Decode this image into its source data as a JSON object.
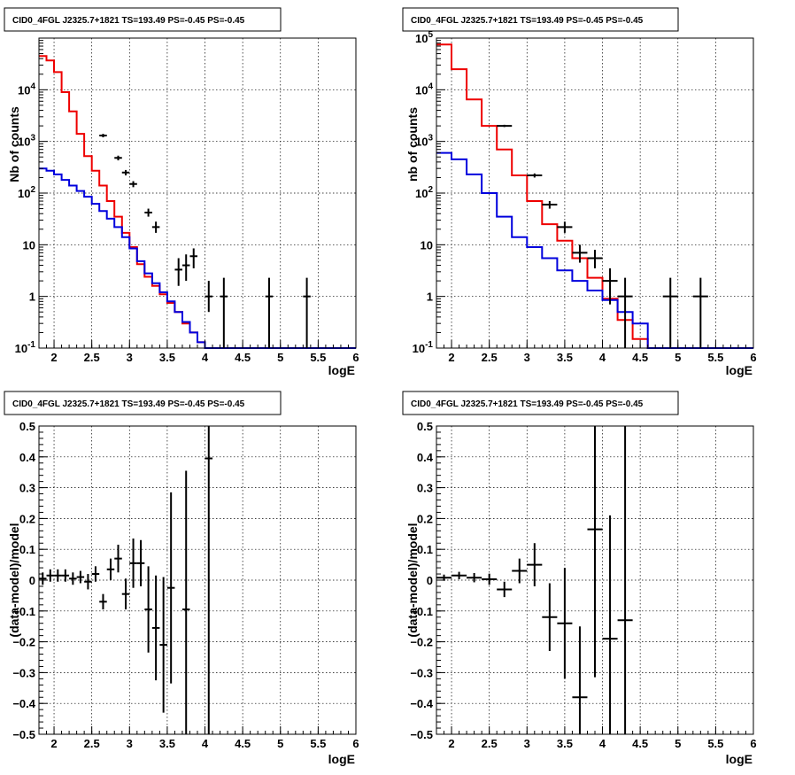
{
  "chart_data": [
    {
      "type": "step-histogram-log",
      "title": "CID0_4FGL J2325.7+1821 TS=193.49 PS=-0.45 PS=-0.45",
      "xlabel": "logE",
      "ylabel": "Nb of counts",
      "xlim": [
        1.8,
        6.0
      ],
      "ylim": [
        0.1,
        100000
      ],
      "log_y": true,
      "grid": true,
      "x_ticks": [
        "2",
        "2.5",
        "3",
        "3.5",
        "4",
        "4.5",
        "5",
        "5.5",
        "6"
      ],
      "y_ticks": [
        "10^-1",
        "1",
        "10",
        "10^2",
        "10^3",
        "10^4"
      ],
      "bin_edges_start": 1.8,
      "bin_width": 0.1,
      "series": [
        {
          "color": "#ee0000",
          "values": [
            45000,
            37000,
            22000,
            9000,
            3800,
            1400,
            520,
            270,
            140,
            70,
            35,
            17,
            9,
            4.2,
            2.4,
            1.6,
            1.1,
            0.75,
            0.5,
            0.3,
            0.2,
            0.13,
            0.1,
            0.1,
            0.1,
            0.1,
            0.1,
            0.1,
            0.1,
            0.1,
            0.1,
            0.1,
            0.1,
            0.1,
            0.1,
            0.1,
            0.1,
            0.1,
            0.1,
            0.1,
            0.1,
            0.1
          ]
        },
        {
          "color": "#0000dd",
          "values": [
            300,
            270,
            230,
            180,
            140,
            110,
            85,
            62,
            45,
            32,
            22,
            14,
            8.5,
            4.8,
            2.8,
            1.8,
            1.2,
            0.8,
            0.5,
            0.32,
            0.2,
            0.13,
            0.1,
            0.1,
            0.1,
            0.1,
            0.1,
            0.1,
            0.1,
            0.1,
            0.1,
            0.1,
            0.1,
            0.1,
            0.1,
            0.1,
            0.1,
            0.1,
            0.1,
            0.1,
            0.1,
            0.1
          ]
        }
      ],
      "points": [
        {
          "x": 2.65,
          "y": 1300,
          "ylo": 1200,
          "yhi": 1400
        },
        {
          "x": 2.85,
          "y": 480,
          "ylo": 430,
          "yhi": 530
        },
        {
          "x": 2.95,
          "y": 250,
          "ylo": 220,
          "yhi": 280
        },
        {
          "x": 3.05,
          "y": 150,
          "ylo": 130,
          "yhi": 170
        },
        {
          "x": 3.25,
          "y": 42,
          "ylo": 35,
          "yhi": 50
        },
        {
          "x": 3.35,
          "y": 22,
          "ylo": 17,
          "yhi": 28
        },
        {
          "x": 3.65,
          "y": 3.3,
          "ylo": 1.6,
          "yhi": 5.5
        },
        {
          "x": 3.75,
          "y": 4.0,
          "ylo": 2.0,
          "yhi": 6.5
        },
        {
          "x": 3.85,
          "y": 6.0,
          "ylo": 3.5,
          "yhi": 8.5
        },
        {
          "x": 4.05,
          "y": 1.0,
          "ylo": 0.5,
          "yhi": 2.0
        },
        {
          "x": 4.25,
          "y": 1.0,
          "ylo": 0.1,
          "yhi": 2.3
        },
        {
          "x": 4.85,
          "y": 1.0,
          "ylo": 0.1,
          "yhi": 2.3
        },
        {
          "x": 5.35,
          "y": 1.0,
          "ylo": 0.1,
          "yhi": 2.3
        }
      ]
    },
    {
      "type": "step-histogram-log",
      "title": "CID0_4FGL J2325.7+1821 TS=193.49 PS=-0.45 PS=-0.45",
      "xlabel": "logE",
      "ylabel": "nb of counts",
      "xlim": [
        1.8,
        6.0
      ],
      "ylim": [
        0.1,
        100000
      ],
      "log_y": true,
      "grid": true,
      "x_ticks": [
        "2",
        "2.5",
        "3",
        "3.5",
        "4",
        "4.5",
        "5",
        "5.5",
        "6"
      ],
      "y_ticks": [
        "10^-1",
        "1",
        "10",
        "10^2",
        "10^3",
        "10^4",
        "10^5"
      ],
      "bin_edges_start": 1.8,
      "bin_width": 0.2,
      "series": [
        {
          "color": "#ee0000",
          "values": [
            75000,
            25000,
            6500,
            2000,
            700,
            220,
            70,
            25,
            12,
            5.5,
            2.3,
            0.9,
            0.35,
            0.15,
            0.1,
            0.1,
            0.1,
            0.1,
            0.1,
            0.1,
            0.1
          ]
        },
        {
          "color": "#0000dd",
          "values": [
            600,
            450,
            230,
            100,
            35,
            14,
            9,
            5.5,
            3.2,
            2.0,
            1.3,
            0.85,
            0.5,
            0.3,
            0.1,
            0.1,
            0.1,
            0.1,
            0.1,
            0.1,
            0.1
          ]
        }
      ],
      "points": [
        {
          "x": 2.7,
          "y": 2000,
          "ylo": 1900,
          "yhi": 2100
        },
        {
          "x": 3.1,
          "y": 220,
          "ylo": 200,
          "yhi": 240
        },
        {
          "x": 3.3,
          "y": 60,
          "ylo": 50,
          "yhi": 70
        },
        {
          "x": 3.5,
          "y": 22,
          "ylo": 17,
          "yhi": 28
        },
        {
          "x": 3.7,
          "y": 7.0,
          "ylo": 4.5,
          "yhi": 10
        },
        {
          "x": 3.9,
          "y": 5.5,
          "ylo": 3.5,
          "yhi": 8
        },
        {
          "x": 4.1,
          "y": 2.0,
          "ylo": 0.7,
          "yhi": 3.5
        },
        {
          "x": 4.3,
          "y": 1.0,
          "ylo": 0.1,
          "yhi": 2.3
        },
        {
          "x": 4.9,
          "y": 1.0,
          "ylo": 0.1,
          "yhi": 2.3
        },
        {
          "x": 5.3,
          "y": 1.0,
          "ylo": 0.1,
          "yhi": 2.3
        }
      ]
    },
    {
      "type": "errorbar",
      "title": "CID0_4FGL J2325.7+1821 TS=193.49 PS=-0.45 PS=-0.45",
      "xlabel": "logE",
      "ylabel": "(data-model)/model",
      "xlim": [
        1.8,
        6.0
      ],
      "ylim": [
        -0.5,
        0.5
      ],
      "grid": true,
      "x_ticks": [
        "2",
        "2.5",
        "3",
        "3.5",
        "4",
        "4.5",
        "5",
        "5.5",
        "6"
      ],
      "y_ticks": [
        "−0.5",
        "−0.4",
        "−0.3",
        "−0.2",
        "−0.1",
        "0",
        "0.1",
        "0.2",
        "0.3",
        "0.4",
        "0.5"
      ],
      "xerr": 0.05,
      "points": [
        {
          "x": 1.85,
          "y": 0.005,
          "err": 0.02
        },
        {
          "x": 1.95,
          "y": 0.015,
          "err": 0.02
        },
        {
          "x": 2.05,
          "y": 0.015,
          "err": 0.02
        },
        {
          "x": 2.15,
          "y": 0.015,
          "err": 0.02
        },
        {
          "x": 2.25,
          "y": 0.005,
          "err": 0.02
        },
        {
          "x": 2.35,
          "y": 0.01,
          "err": 0.02
        },
        {
          "x": 2.45,
          "y": -0.005,
          "err": 0.025
        },
        {
          "x": 2.55,
          "y": 0.02,
          "err": 0.025
        },
        {
          "x": 2.65,
          "y": -0.07,
          "err": 0.025
        },
        {
          "x": 2.75,
          "y": 0.035,
          "err": 0.035
        },
        {
          "x": 2.85,
          "y": 0.07,
          "err": 0.045
        },
        {
          "x": 2.95,
          "y": -0.045,
          "err": 0.05
        },
        {
          "x": 3.05,
          "y": 0.055,
          "err": 0.08
        },
        {
          "x": 3.15,
          "y": 0.055,
          "err": 0.075
        },
        {
          "x": 3.25,
          "y": -0.095,
          "err": 0.14
        },
        {
          "x": 3.35,
          "y": -0.155,
          "err": 0.17
        },
        {
          "x": 3.45,
          "y": -0.21,
          "err": 0.22
        },
        {
          "x": 3.55,
          "y": -0.025,
          "err": 0.31
        },
        {
          "x": 3.75,
          "y": -0.095,
          "err": 0.45
        },
        {
          "x": 4.05,
          "y": 0.395,
          "err": 0.9
        }
      ]
    },
    {
      "type": "errorbar",
      "title": "CID0_4FGL J2325.7+1821 TS=193.49 PS=-0.45 PS=-0.45",
      "xlabel": "logE",
      "ylabel": "(data-model)/model",
      "xlim": [
        1.8,
        6.0
      ],
      "ylim": [
        -0.5,
        0.5
      ],
      "grid": true,
      "x_ticks": [
        "2",
        "2.5",
        "3",
        "3.5",
        "4",
        "4.5",
        "5",
        "5.5",
        "6"
      ],
      "y_ticks": [
        "−0.5",
        "−0.4",
        "−0.3",
        "−0.2",
        "−0.1",
        "0",
        "0.1",
        "0.2",
        "0.3",
        "0.4",
        "0.5"
      ],
      "xerr": 0.1,
      "points": [
        {
          "x": 1.9,
          "y": 0.008,
          "err": 0.01
        },
        {
          "x": 2.1,
          "y": 0.015,
          "err": 0.012
        },
        {
          "x": 2.3,
          "y": 0.008,
          "err": 0.015
        },
        {
          "x": 2.5,
          "y": 0.003,
          "err": 0.018
        },
        {
          "x": 2.7,
          "y": -0.03,
          "err": 0.025
        },
        {
          "x": 2.9,
          "y": 0.03,
          "err": 0.04
        },
        {
          "x": 3.1,
          "y": 0.05,
          "err": 0.07
        },
        {
          "x": 3.3,
          "y": -0.12,
          "err": 0.11
        },
        {
          "x": 3.5,
          "y": -0.14,
          "err": 0.18
        },
        {
          "x": 3.7,
          "y": -0.38,
          "err": 0.23
        },
        {
          "x": 3.9,
          "y": 0.165,
          "err": 0.48
        },
        {
          "x": 4.1,
          "y": -0.19,
          "err": 0.4
        },
        {
          "x": 4.3,
          "y": -0.13,
          "err": 0.8
        }
      ]
    }
  ]
}
